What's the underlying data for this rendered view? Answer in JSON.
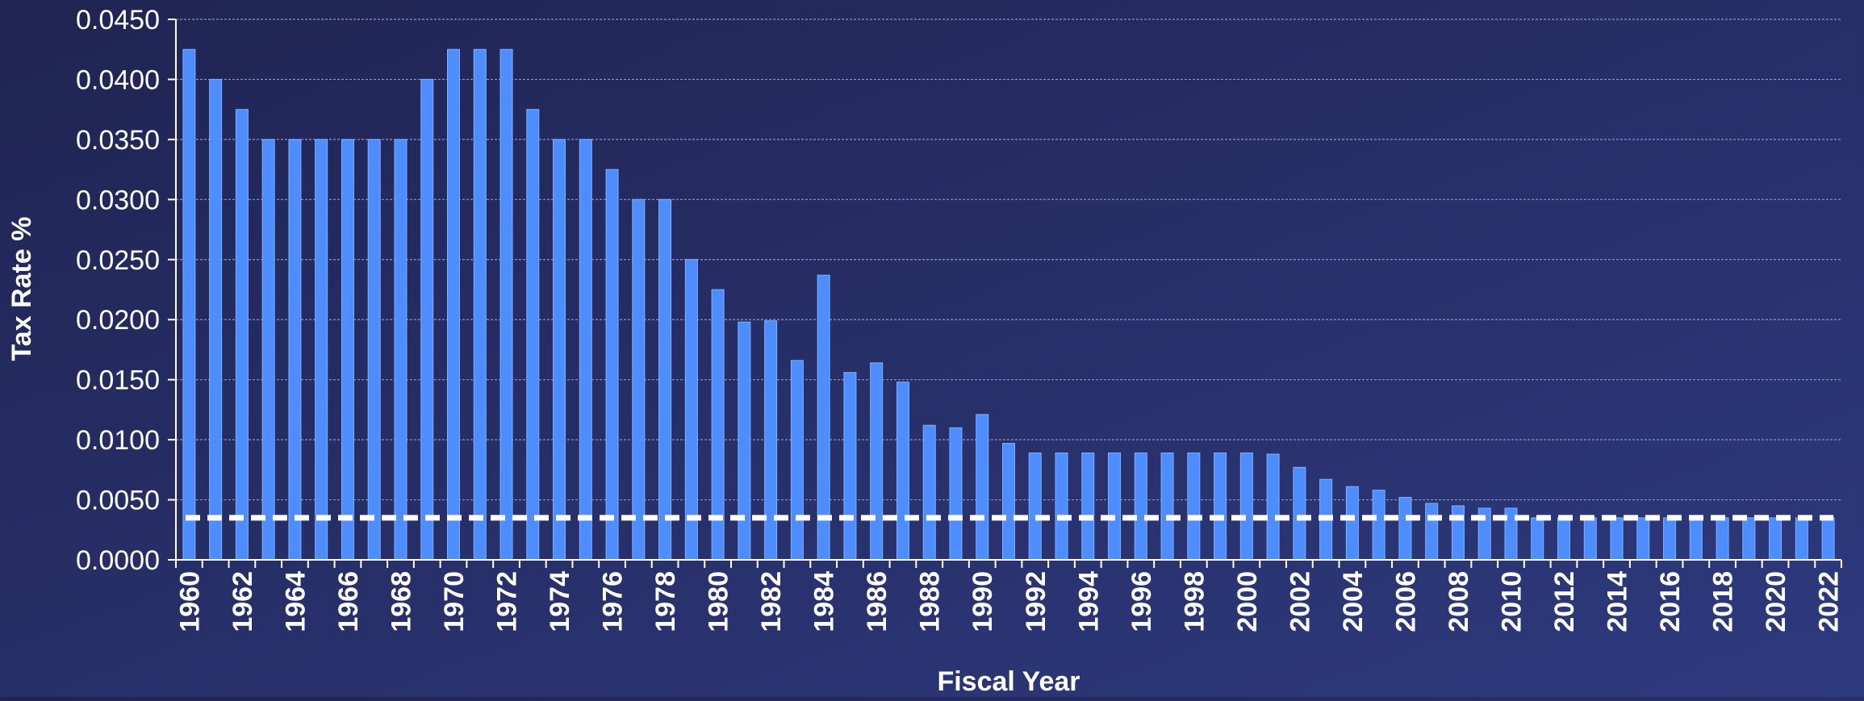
{
  "chart_data": {
    "type": "bar",
    "xlabel": "Fiscal Year",
    "ylabel": "Tax Rate %",
    "ylim": [
      0,
      0.045
    ],
    "yticks": [
      "0.0000",
      "0.0050",
      "0.0100",
      "0.0150",
      "0.0200",
      "0.0250",
      "0.0300",
      "0.0350",
      "0.0400",
      "0.0450"
    ],
    "grid": true,
    "categories": [
      "1960",
      "1961",
      "1962",
      "1963",
      "1964",
      "1965",
      "1966",
      "1967",
      "1968",
      "1969",
      "1970",
      "1971",
      "1972",
      "1973",
      "1974",
      "1975",
      "1976",
      "1977",
      "1978",
      "1979",
      "1980",
      "1981",
      "1982",
      "1983",
      "1984",
      "1985",
      "1986",
      "1987",
      "1988",
      "1989",
      "1990",
      "1991",
      "1992",
      "1993",
      "1994",
      "1995",
      "1996",
      "1997",
      "1998",
      "1999",
      "2000",
      "2001",
      "2002",
      "2003",
      "2004",
      "2005",
      "2006",
      "2007",
      "2008",
      "2009",
      "2010",
      "2011",
      "2012",
      "2013",
      "2014",
      "2015",
      "2016",
      "2017",
      "2018",
      "2019",
      "2020",
      "2021",
      "2022"
    ],
    "x_tick_labels": [
      "1960",
      "1962",
      "1964",
      "1966",
      "1968",
      "1970",
      "1972",
      "1974",
      "1976",
      "1978",
      "1980",
      "1982",
      "1984",
      "1986",
      "1988",
      "1990",
      "1992",
      "1994",
      "1996",
      "1998",
      "2000",
      "2002",
      "2004",
      "2006",
      "2008",
      "2010",
      "2012",
      "2014",
      "2016",
      "2018",
      "2020",
      "2022"
    ],
    "values": [
      0.0425,
      0.04,
      0.0375,
      0.035,
      0.035,
      0.035,
      0.035,
      0.035,
      0.035,
      0.04,
      0.0425,
      0.0425,
      0.0425,
      0.0375,
      0.035,
      0.035,
      0.0325,
      0.03,
      0.03,
      0.025,
      0.0225,
      0.0198,
      0.0199,
      0.0166,
      0.0237,
      0.0156,
      0.0164,
      0.0148,
      0.0112,
      0.011,
      0.0121,
      0.0097,
      0.0089,
      0.0089,
      0.0089,
      0.0089,
      0.0089,
      0.0089,
      0.0089,
      0.0089,
      0.0089,
      0.0088,
      0.0077,
      0.0067,
      0.0061,
      0.0058,
      0.0052,
      0.0047,
      0.0045,
      0.0043,
      0.0043,
      0.0035,
      0.0035,
      0.0035,
      0.0035,
      0.0035,
      0.0035,
      0.0035,
      0.0035,
      0.0035,
      0.0035,
      0.0035,
      0.0035
    ],
    "reference_line": {
      "value": 0.0035,
      "style": "dashed"
    },
    "colors": {
      "bar": "#4d8dff",
      "bar_edge": "#7fb0ff",
      "grid": "#8a93c8",
      "text": "#ffffff",
      "reference_line": "#ffffff"
    }
  }
}
